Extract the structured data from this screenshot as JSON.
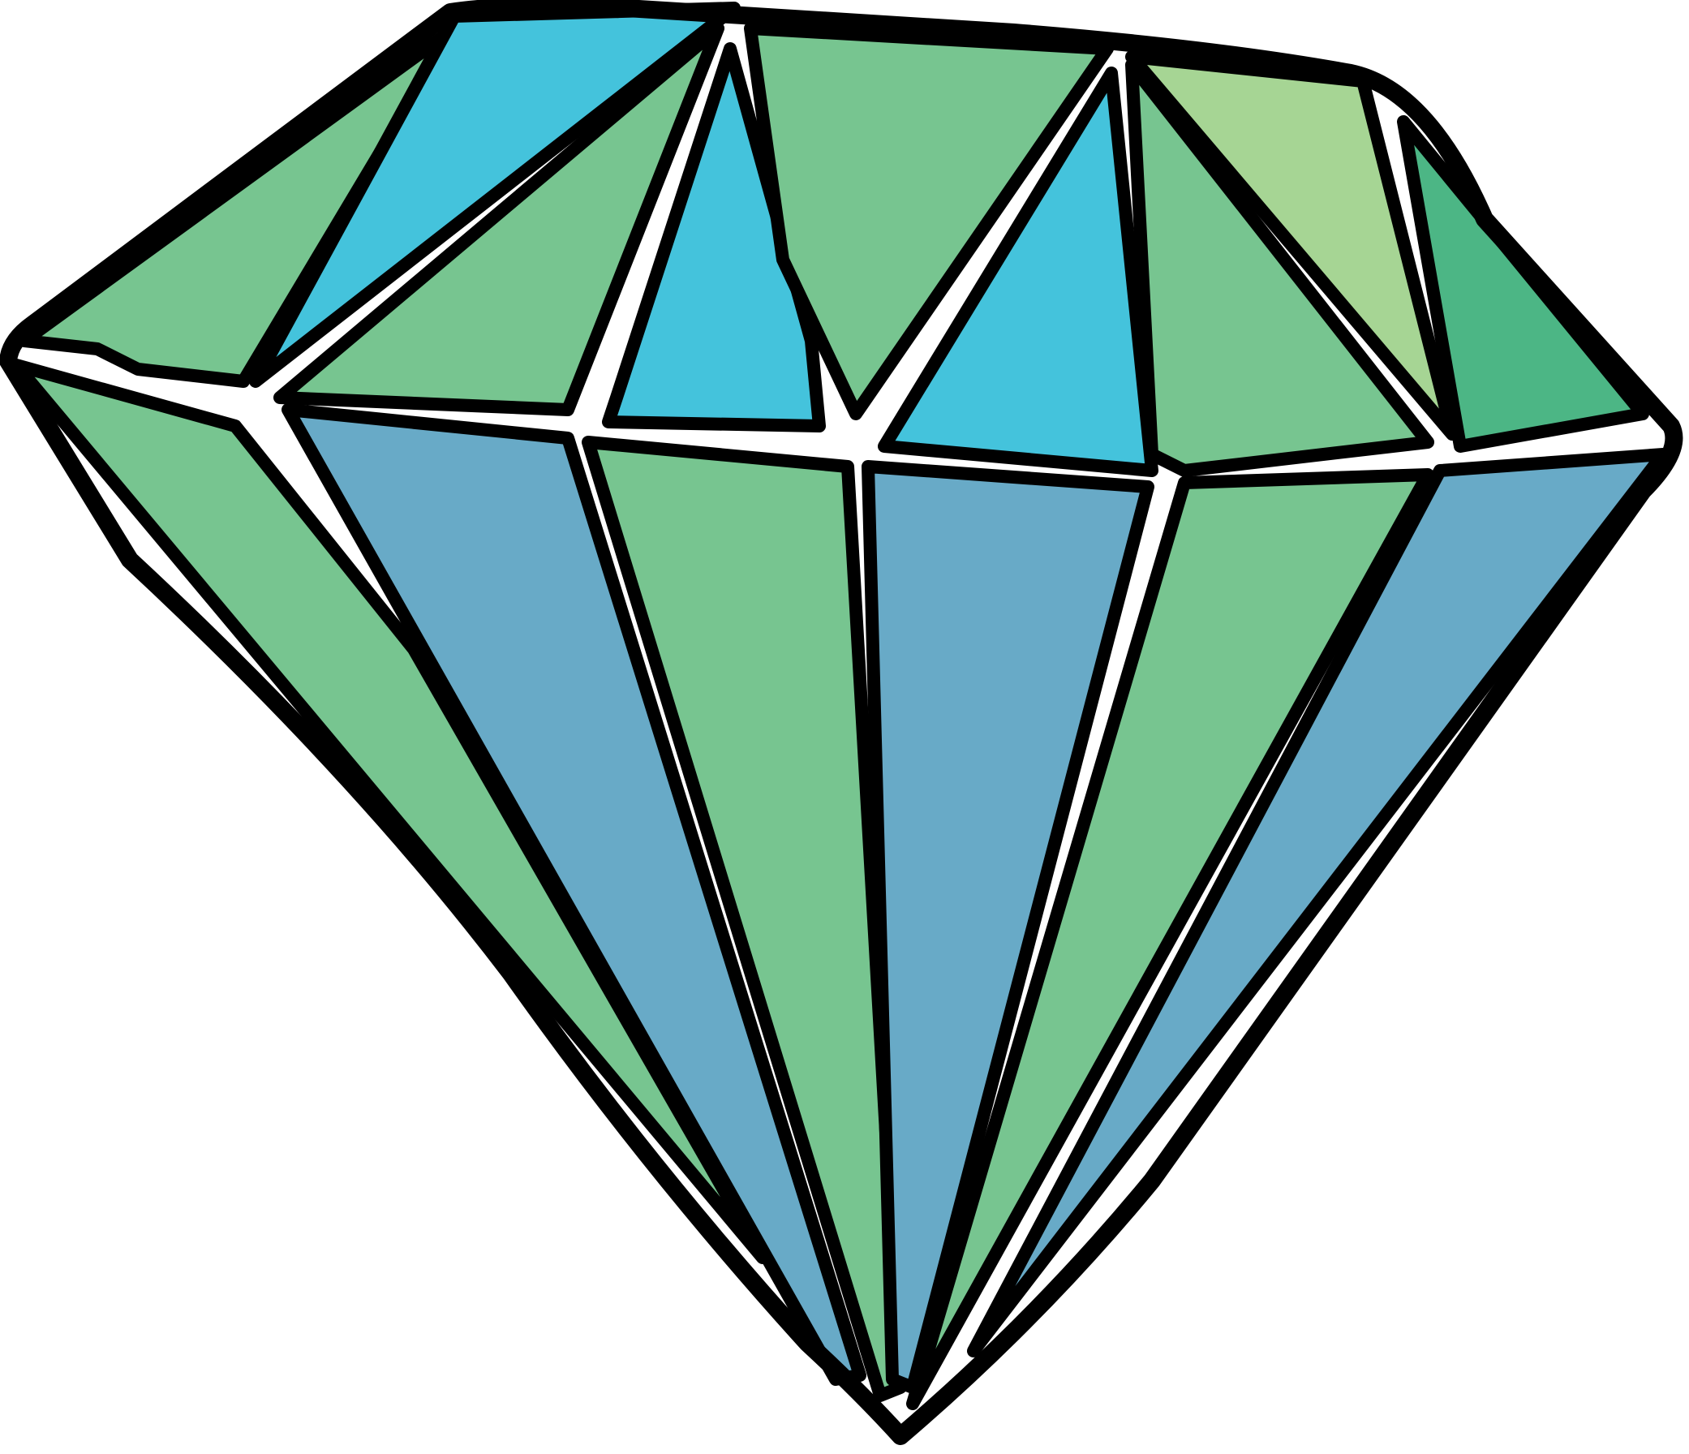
{
  "illustration": {
    "subject-icon": "diamond-icon",
    "colors": {
      "outline": "#000000",
      "green": "#77C590",
      "cyan": "#44C3DC",
      "blue": "#68AAC7",
      "light_green": "#A6D594",
      "dark_green": "#4CB685",
      "background": "#FFFFFF"
    }
  }
}
